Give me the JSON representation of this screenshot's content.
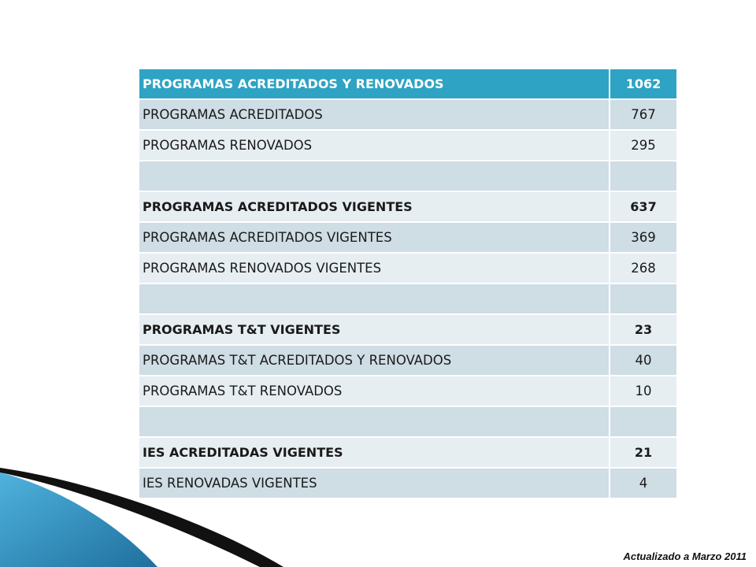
{
  "table": {
    "rows": [
      {
        "label": "PROGRAMAS ACREDITADOS Y RENOVADOS",
        "value": "1062",
        "style": "header"
      },
      {
        "label": "PROGRAMAS ACREDITADOS",
        "value": "767",
        "style": "normal"
      },
      {
        "label": "PROGRAMAS RENOVADOS",
        "value": "295",
        "style": "normal"
      },
      {
        "label": "",
        "value": "",
        "style": "blank"
      },
      {
        "label": "PROGRAMAS ACREDITADOS VIGENTES",
        "value": "637",
        "style": "bold"
      },
      {
        "label": "PROGRAMAS ACREDITADOS VIGENTES",
        "value": "369",
        "style": "normal"
      },
      {
        "label": "PROGRAMAS RENOVADOS VIGENTES",
        "value": "268",
        "style": "normal"
      },
      {
        "label": "",
        "value": "",
        "style": "blank"
      },
      {
        "label": "PROGRAMAS T&T VIGENTES",
        "value": "23",
        "style": "bold"
      },
      {
        "label": "PROGRAMAS T&T ACREDITADOS Y RENOVADOS",
        "value": "40",
        "style": "normal"
      },
      {
        "label": "PROGRAMAS T&T RENOVADOS",
        "value": "10",
        "style": "normal"
      },
      {
        "label": "",
        "value": "",
        "style": "blank"
      },
      {
        "label": "IES ACREDITADAS VIGENTES",
        "value": "21",
        "style": "bold"
      },
      {
        "label": "IES RENOVADAS VIGENTES",
        "value": "4",
        "style": "normal"
      }
    ]
  },
  "footer": {
    "note": "Actualizado a Marzo 2011"
  },
  "colors": {
    "header_bg": "#2ea3c4",
    "row_odd_bg": "#cfdde5",
    "row_even_bg": "#e6eef2",
    "swoosh_blue": "#2e8fbd"
  }
}
